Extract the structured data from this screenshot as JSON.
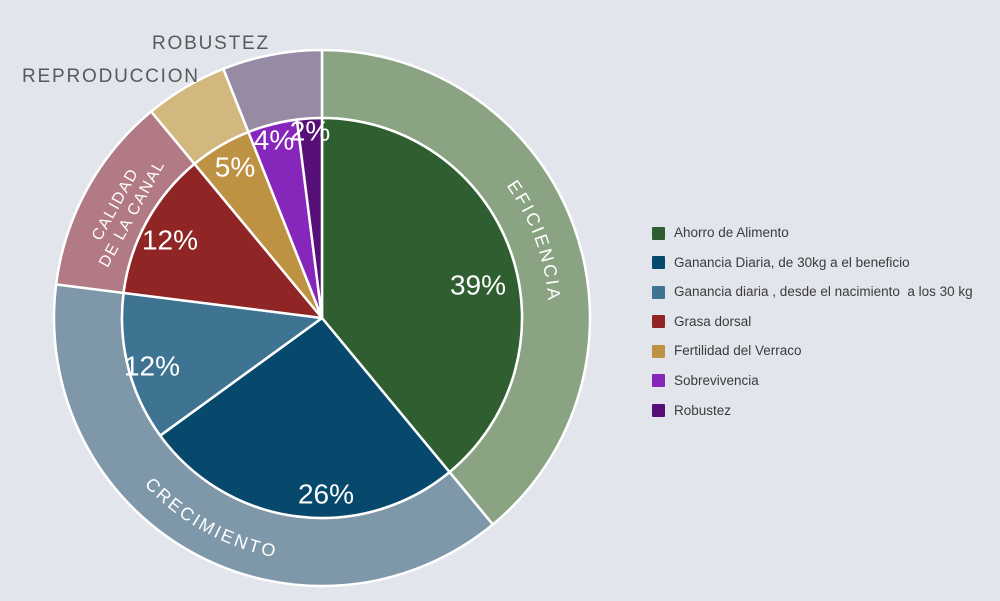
{
  "background_color": "#e3e5ec",
  "chart_data": {
    "type": "pie",
    "subtype": "donut-with-grouped-outer-ring",
    "title": "",
    "units": "%",
    "start_angle_deg": 0,
    "direction": "clockwise",
    "legend_position": "right",
    "stroke_color": "#ffffff",
    "slices": [
      {
        "label": "Ahorro de Alimento",
        "value": 39,
        "color": "#2f5f30"
      },
      {
        "label": "Ganancia Diaria, de 30kg a el beneficio",
        "value": 26,
        "color": "#07496c"
      },
      {
        "label": "Ganancia diaria , desde el nacimiento  a los 30 kg",
        "value": 12,
        "color": "#3f7392"
      },
      {
        "label": "Grasa dorsal",
        "value": 12,
        "color": "#8f2524"
      },
      {
        "label": "Fertilidad del Verraco",
        "value": 5,
        "color": "#bd9343"
      },
      {
        "label": "Sobrevivencia",
        "value": 4,
        "color": "#8626bb"
      },
      {
        "label": "Robustez",
        "value": 2,
        "color": "#570f78"
      }
    ],
    "groups": [
      {
        "label": "EFICIENCIA",
        "slice_indexes": [
          0
        ],
        "color": "#8aa483",
        "label_style": "curved"
      },
      {
        "label": "CRECIMIENTO",
        "slice_indexes": [
          1,
          2
        ],
        "color": "#7f98a9",
        "label_style": "curved-flipped"
      },
      {
        "label": "CALIDAD DE LA CANAL",
        "slice_indexes": [
          3
        ],
        "color": "#b27a84",
        "label_style": "radial",
        "label_lines": [
          "CALIDAD",
          "DE LA CANAL"
        ]
      },
      {
        "label": "REPRODUCCION",
        "slice_indexes": [
          4
        ],
        "color": "#d2b77e",
        "label_style": "outside"
      },
      {
        "label": "ROBUSTEZ",
        "slice_indexes": [
          5,
          6
        ],
        "color": "#978aa5",
        "label_style": "outside"
      }
    ]
  }
}
